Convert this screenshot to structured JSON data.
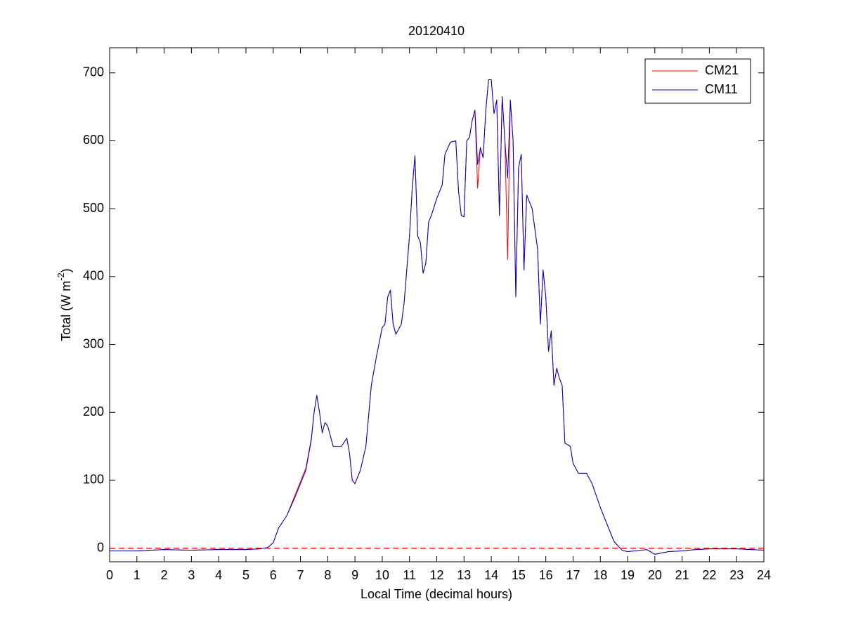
{
  "chart_data": {
    "type": "line",
    "title": "20120410",
    "xlabel": "Local Time (decimal hours)",
    "ylabel": [
      "Total (W m",
      "-2",
      ")"
    ],
    "xlim": [
      0,
      24
    ],
    "xticks": [
      0,
      1,
      2,
      3,
      4,
      5,
      6,
      7,
      8,
      9,
      10,
      11,
      12,
      13,
      14,
      15,
      16,
      17,
      18,
      19,
      20,
      21,
      22,
      23,
      24
    ],
    "ylim": [
      -20,
      737
    ],
    "yticks": [
      0,
      100,
      200,
      300,
      400,
      500,
      600,
      700
    ],
    "grid": false,
    "legend": "top-right",
    "reference_line": {
      "value": 0,
      "color": "#ff0000",
      "style": "dashed"
    },
    "x": [
      0,
      1,
      2,
      3,
      4,
      5,
      5.5,
      5.8,
      6.0,
      6.2,
      6.5,
      6.8,
      7.0,
      7.2,
      7.4,
      7.5,
      7.6,
      7.7,
      7.8,
      7.9,
      8.0,
      8.2,
      8.5,
      8.7,
      8.8,
      8.9,
      9.0,
      9.2,
      9.4,
      9.6,
      9.8,
      10.0,
      10.1,
      10.2,
      10.3,
      10.4,
      10.5,
      10.7,
      10.8,
      11.0,
      11.1,
      11.2,
      11.3,
      11.4,
      11.5,
      11.6,
      11.7,
      11.8,
      12.0,
      12.2,
      12.3,
      12.5,
      12.7,
      12.8,
      12.9,
      13.0,
      13.1,
      13.2,
      13.3,
      13.4,
      13.5,
      13.6,
      13.7,
      13.8,
      13.9,
      14.0,
      14.1,
      14.2,
      14.3,
      14.4,
      14.5,
      14.6,
      14.7,
      14.8,
      14.9,
      15.0,
      15.1,
      15.2,
      15.3,
      15.5,
      15.6,
      15.7,
      15.8,
      15.9,
      16.0,
      16.1,
      16.2,
      16.3,
      16.4,
      16.5,
      16.6,
      16.7,
      16.9,
      17.0,
      17.2,
      17.5,
      17.7,
      18.0,
      18.3,
      18.5,
      18.8,
      19.0,
      19.5,
      19.7,
      20.0,
      20.5,
      21.0,
      21.5,
      22.0,
      23.0,
      24.0
    ],
    "series": [
      {
        "name": "CM21",
        "color": "#ff0000",
        "values": [
          -4,
          -4,
          -2,
          -3,
          -2,
          -2,
          -1,
          1,
          8,
          30,
          48,
          78,
          98,
          118,
          162,
          200,
          225,
          200,
          170,
          185,
          180,
          150,
          150,
          162,
          140,
          100,
          95,
          115,
          150,
          240,
          285,
          325,
          330,
          370,
          380,
          330,
          315,
          330,
          360,
          460,
          530,
          578,
          460,
          450,
          405,
          420,
          480,
          490,
          515,
          535,
          580,
          598,
          600,
          525,
          490,
          488,
          600,
          605,
          630,
          645,
          530,
          590,
          575,
          645,
          690,
          690,
          640,
          660,
          490,
          665,
          600,
          425,
          660,
          600,
          370,
          560,
          580,
          410,
          520,
          500,
          470,
          440,
          330,
          410,
          370,
          290,
          320,
          240,
          265,
          250,
          240,
          155,
          150,
          125,
          110,
          110,
          95,
          60,
          30,
          10,
          -3,
          -5,
          -3,
          -2,
          -9,
          -5,
          -4,
          -2,
          -1,
          -1,
          -3
        ]
      },
      {
        "name": "CM11",
        "color": "#0000cc",
        "values": [
          -4,
          -4,
          -2,
          -3,
          -2,
          -2,
          -1,
          1,
          8,
          30,
          48,
          75,
          95,
          115,
          160,
          200,
          225,
          200,
          170,
          185,
          180,
          150,
          150,
          162,
          140,
          100,
          95,
          115,
          150,
          240,
          285,
          325,
          330,
          370,
          380,
          330,
          315,
          330,
          360,
          460,
          530,
          578,
          460,
          450,
          405,
          420,
          480,
          490,
          515,
          535,
          580,
          598,
          600,
          525,
          490,
          488,
          600,
          605,
          630,
          645,
          565,
          590,
          575,
          645,
          690,
          690,
          640,
          660,
          490,
          665,
          600,
          545,
          660,
          600,
          370,
          560,
          580,
          410,
          520,
          500,
          470,
          440,
          330,
          410,
          370,
          290,
          320,
          240,
          265,
          250,
          240,
          155,
          150,
          125,
          110,
          110,
          95,
          60,
          30,
          10,
          -3,
          -5,
          -3,
          -2,
          -9,
          -5,
          -4,
          -2,
          -1,
          -1,
          -3
        ]
      }
    ]
  }
}
